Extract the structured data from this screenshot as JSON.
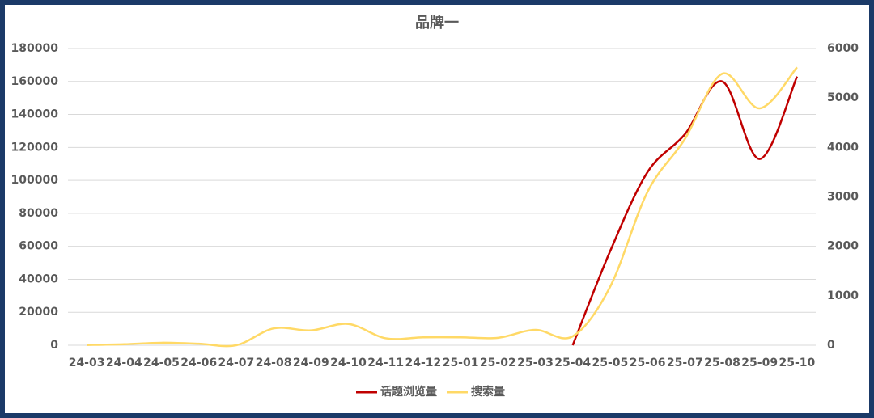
{
  "chart_data": {
    "type": "line",
    "title": "品牌一",
    "categories": [
      "24-03",
      "24-04",
      "24-05",
      "24-06",
      "24-07",
      "24-08",
      "24-09",
      "24-10",
      "24-11",
      "24-12",
      "25-01",
      "25-02",
      "25-03",
      "25-04",
      "25-05",
      "25-06",
      "25-07",
      "25-08",
      "25-09",
      "25-10"
    ],
    "series": [
      {
        "name": "话题浏览量",
        "color": "#c00000",
        "values": [
          null,
          null,
          null,
          null,
          null,
          null,
          null,
          null,
          null,
          null,
          null,
          null,
          null,
          0,
          57000,
          105000,
          128000,
          160000,
          113000,
          163000
        ]
      },
      {
        "name": "搜索量",
        "color": "#ffd966",
        "axis": "y2",
        "values": [
          5,
          20,
          50,
          30,
          0,
          340,
          300,
          430,
          140,
          160,
          160,
          150,
          310,
          180,
          1180,
          3100,
          4170,
          5490,
          4790,
          5620
        ]
      }
    ],
    "ylim": [
      0,
      180000
    ],
    "yticks": [
      0,
      20000,
      40000,
      60000,
      80000,
      100000,
      120000,
      140000,
      160000,
      180000
    ],
    "y2lim": [
      0,
      6000
    ],
    "y2ticks": [
      0,
      1000,
      2000,
      3000,
      4000,
      5000,
      6000
    ],
    "grid": true,
    "legend": "bottom"
  }
}
